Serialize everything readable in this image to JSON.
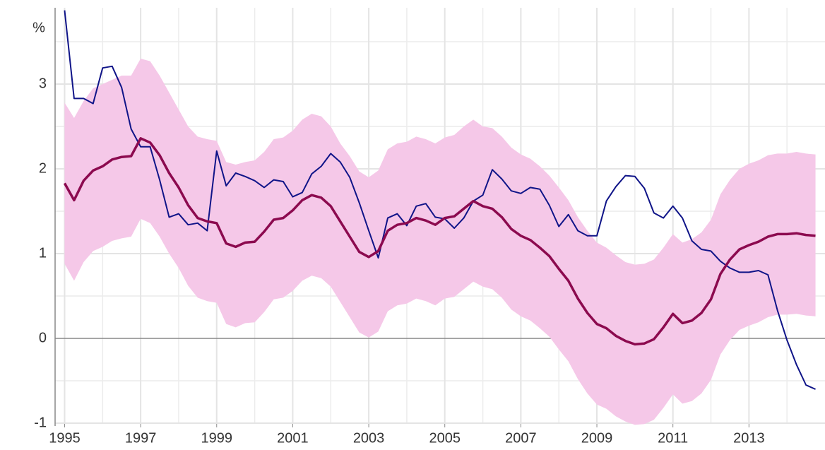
{
  "chart_data": {
    "type": "line",
    "y_label": "%",
    "x": [
      1995,
      1995.25,
      1995.5,
      1995.75,
      1996,
      1996.25,
      1996.5,
      1996.75,
      1997,
      1997.25,
      1997.5,
      1997.75,
      1998,
      1998.25,
      1998.5,
      1998.75,
      1999,
      1999.25,
      1999.5,
      1999.75,
      2000,
      2000.25,
      2000.5,
      2000.75,
      2001,
      2001.25,
      2001.5,
      2001.75,
      2002,
      2002.25,
      2002.5,
      2002.75,
      2003,
      2003.25,
      2003.5,
      2003.75,
      2004,
      2004.25,
      2004.5,
      2004.75,
      2005,
      2005.25,
      2005.5,
      2005.75,
      2006,
      2006.25,
      2006.5,
      2006.75,
      2007,
      2007.25,
      2007.5,
      2007.75,
      2008,
      2008.25,
      2008.5,
      2008.75,
      2009,
      2009.25,
      2009.5,
      2009.75,
      2010,
      2010.25,
      2010.5,
      2010.75,
      2011,
      2011.25,
      2011.5,
      2011.75,
      2012,
      2012.25,
      2012.5,
      2012.75,
      2013,
      2013.25,
      2013.5,
      2013.75,
      2014,
      2014.25,
      2014.5,
      2014.75
    ],
    "band": {
      "color": "#f5c8e8",
      "upper": [
        2.78,
        2.6,
        2.8,
        2.95,
        3.0,
        3.05,
        3.1,
        3.1,
        3.3,
        3.27,
        3.1,
        2.9,
        2.7,
        2.5,
        2.38,
        2.35,
        2.33,
        2.08,
        2.05,
        2.08,
        2.1,
        2.2,
        2.35,
        2.37,
        2.45,
        2.58,
        2.65,
        2.62,
        2.5,
        2.3,
        2.15,
        1.97,
        1.9,
        1.98,
        2.23,
        2.3,
        2.32,
        2.38,
        2.35,
        2.3,
        2.37,
        2.4,
        2.5,
        2.58,
        2.5,
        2.48,
        2.38,
        2.25,
        2.17,
        2.12,
        2.03,
        1.92,
        1.78,
        1.63,
        1.43,
        1.27,
        1.13,
        1.07,
        0.98,
        0.9,
        0.87,
        0.88,
        0.93,
        1.07,
        1.23,
        1.13,
        1.17,
        1.25,
        1.4,
        1.7,
        1.87,
        2.0,
        2.06,
        2.1,
        2.16,
        2.18,
        2.18,
        2.2,
        2.18,
        2.17
      ],
      "lower": [
        0.88,
        0.68,
        0.9,
        1.03,
        1.08,
        1.15,
        1.18,
        1.2,
        1.41,
        1.36,
        1.2,
        1.0,
        0.83,
        0.62,
        0.48,
        0.44,
        0.42,
        0.17,
        0.13,
        0.18,
        0.19,
        0.31,
        0.46,
        0.48,
        0.56,
        0.68,
        0.74,
        0.71,
        0.61,
        0.43,
        0.25,
        0.07,
        0.01,
        0.08,
        0.32,
        0.39,
        0.41,
        0.47,
        0.44,
        0.39,
        0.47,
        0.49,
        0.58,
        0.67,
        0.61,
        0.58,
        0.48,
        0.34,
        0.26,
        0.21,
        0.12,
        0.02,
        -0.13,
        -0.27,
        -0.48,
        -0.65,
        -0.78,
        -0.83,
        -0.92,
        -0.98,
        -1.02,
        -1.01,
        -0.96,
        -0.82,
        -0.66,
        -0.77,
        -0.74,
        -0.65,
        -0.49,
        -0.19,
        -0.02,
        0.1,
        0.15,
        0.19,
        0.25,
        0.28,
        0.28,
        0.29,
        0.27,
        0.26
      ]
    },
    "series": [
      {
        "color": "#0f1488",
        "width": 2,
        "values": [
          3.87,
          2.83,
          2.83,
          2.77,
          3.19,
          3.21,
          2.96,
          2.47,
          2.26,
          2.26,
          1.87,
          1.43,
          1.47,
          1.34,
          1.36,
          1.27,
          2.21,
          1.8,
          1.95,
          1.91,
          1.86,
          1.78,
          1.87,
          1.85,
          1.67,
          1.72,
          1.94,
          2.03,
          2.18,
          2.08,
          1.9,
          1.6,
          1.27,
          0.95,
          1.42,
          1.47,
          1.33,
          1.56,
          1.59,
          1.43,
          1.41,
          1.3,
          1.42,
          1.62,
          1.69,
          1.99,
          1.88,
          1.74,
          1.71,
          1.78,
          1.76,
          1.57,
          1.32,
          1.46,
          1.27,
          1.21,
          1.21,
          1.62,
          1.79,
          1.92,
          1.91,
          1.77,
          1.48,
          1.42,
          1.56,
          1.42,
          1.15,
          1.05,
          1.03,
          0.91,
          0.83,
          0.78,
          0.78,
          0.8,
          0.75,
          0.33,
          -0.02,
          -0.31,
          -0.55,
          -0.6
        ]
      },
      {
        "color": "#8c0a4f",
        "width": 3.5,
        "values": [
          1.83,
          1.63,
          1.86,
          1.98,
          2.03,
          2.11,
          2.14,
          2.15,
          2.36,
          2.31,
          2.16,
          1.95,
          1.78,
          1.57,
          1.42,
          1.38,
          1.36,
          1.12,
          1.08,
          1.13,
          1.14,
          1.26,
          1.4,
          1.42,
          1.51,
          1.63,
          1.69,
          1.66,
          1.56,
          1.38,
          1.2,
          1.02,
          0.96,
          1.03,
          1.27,
          1.34,
          1.36,
          1.42,
          1.39,
          1.34,
          1.42,
          1.44,
          1.53,
          1.62,
          1.56,
          1.53,
          1.43,
          1.29,
          1.21,
          1.16,
          1.07,
          0.97,
          0.82,
          0.68,
          0.47,
          0.3,
          0.17,
          0.12,
          0.03,
          -0.03,
          -0.07,
          -0.06,
          -0.01,
          0.13,
          0.29,
          0.18,
          0.21,
          0.3,
          0.46,
          0.76,
          0.93,
          1.05,
          1.1,
          1.14,
          1.2,
          1.23,
          1.23,
          1.24,
          1.22,
          1.21
        ]
      }
    ],
    "xlim": [
      1994.75,
      2015
    ],
    "ylim": [
      -1,
      3.9
    ],
    "xticks": [
      1995,
      1997,
      1999,
      2001,
      2003,
      2005,
      2007,
      2009,
      2011,
      2013
    ],
    "yticks": [
      -1,
      0,
      1,
      2,
      3
    ],
    "grid": true
  }
}
